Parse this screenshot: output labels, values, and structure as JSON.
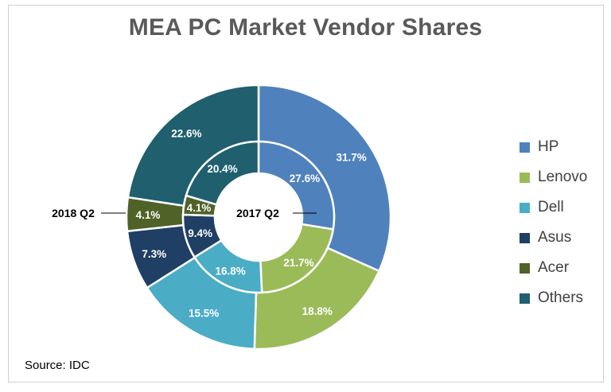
{
  "chart_data": {
    "type": "pie",
    "title": "MEA PC Market Vendor Shares",
    "categories": [
      "HP",
      "Lenovo",
      "Dell",
      "Asus",
      "Acer",
      "Others"
    ],
    "colors": [
      "#4f81bd",
      "#9bbb59",
      "#4bacc6",
      "#1f3f64",
      "#4f6228",
      "#1f5f6e"
    ],
    "series": [
      {
        "name": "2018 Q2",
        "values": [
          31.7,
          18.8,
          15.5,
          7.3,
          4.1,
          22.6
        ],
        "labels": [
          "31.7%",
          "18.8%",
          "15.5%",
          "7.3%",
          "4.1%",
          "22.6%"
        ]
      },
      {
        "name": "2017 Q2",
        "values": [
          27.6,
          21.7,
          16.8,
          9.4,
          4.1,
          20.4
        ],
        "labels": [
          "27.6%",
          "21.7%",
          "16.8%",
          "9.4%",
          "4.1%",
          "20.4%"
        ]
      }
    ],
    "legend": "right",
    "source": "Source: IDC"
  }
}
